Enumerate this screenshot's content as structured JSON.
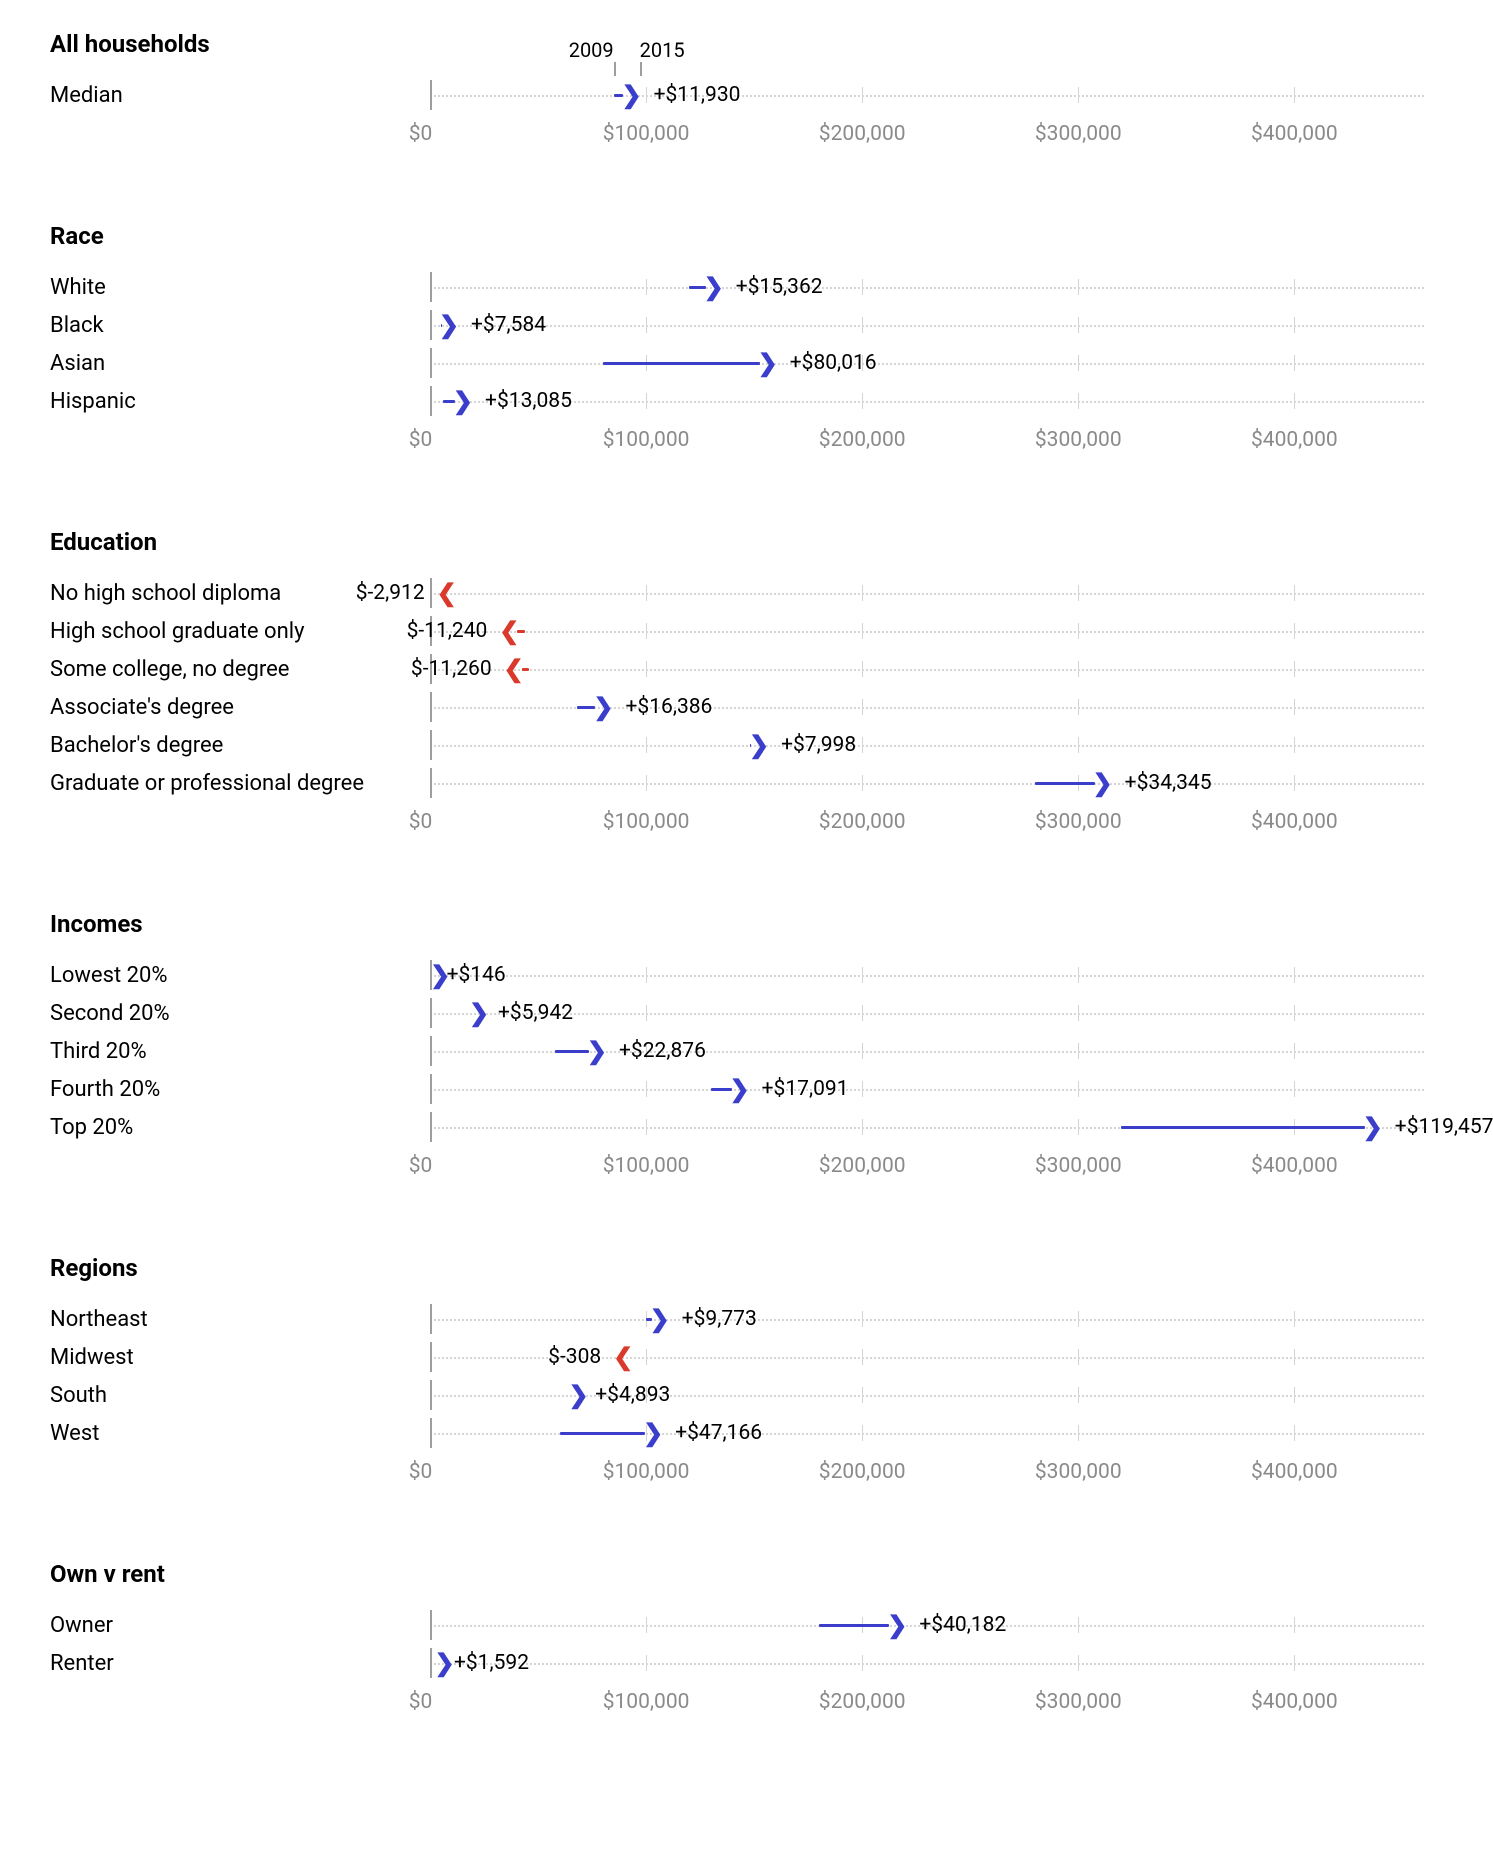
{
  "chart": {
    "type": "arrow-dot-plot",
    "background_color": "#ffffff",
    "line_color_dotted": "#d5d5d5",
    "zero_line_color": "#9e9e9e",
    "positive_color": "#3b3ecb",
    "negative_color": "#d93a2b",
    "text_color": "#000000",
    "axis_label_color": "#8a8a8a",
    "axis": {
      "min": 0,
      "max": 460000,
      "ticks": [
        0,
        100000,
        200000,
        300000,
        400000
      ],
      "tick_labels": [
        "$0",
        "$100,000",
        "$200,000",
        "$300,000",
        "$400,000"
      ],
      "fontsize": 21
    },
    "arrow_stroke_width": 3,
    "label_fontsize": 22,
    "header_fontsize": 24,
    "value_fontsize": 21,
    "year_labels": {
      "start": "2009",
      "end": "2015"
    }
  },
  "sections": [
    {
      "title": "All households",
      "show_year_marks": true,
      "rows": [
        {
          "label": "Median",
          "start": 85000,
          "end": 97000,
          "delta_label": "+$11,930",
          "positive": true
        }
      ]
    },
    {
      "title": "Race",
      "rows": [
        {
          "label": "White",
          "start": 120000,
          "end": 135000,
          "delta_label": "+$15,362",
          "positive": true
        },
        {
          "label": "Black",
          "start": 5000,
          "end": 12500,
          "delta_label": "+$7,584",
          "positive": true
        },
        {
          "label": "Asian",
          "start": 80000,
          "end": 160000,
          "delta_label": "+$80,016",
          "positive": true
        },
        {
          "label": "Hispanic",
          "start": 6000,
          "end": 19000,
          "delta_label": "+$13,085",
          "positive": true
        }
      ]
    },
    {
      "title": "Education",
      "rows": [
        {
          "label": "No high school diploma",
          "start": 7000,
          "end": 4000,
          "delta_label": "$-2,912",
          "positive": false
        },
        {
          "label": "High school graduate only",
          "start": 44000,
          "end": 33000,
          "delta_label": "$-11,240",
          "positive": false
        },
        {
          "label": "Some college, no degree",
          "start": 46000,
          "end": 35000,
          "delta_label": "$-11,260",
          "positive": false
        },
        {
          "label": "Associate's degree",
          "start": 68000,
          "end": 84000,
          "delta_label": "+$16,386",
          "positive": true
        },
        {
          "label": "Bachelor's degree",
          "start": 148000,
          "end": 156000,
          "delta_label": "+$7,998",
          "positive": true
        },
        {
          "label": "Graduate or professional degree",
          "start": 280000,
          "end": 315000,
          "delta_label": "+$34,345",
          "positive": true
        }
      ]
    },
    {
      "title": "Incomes",
      "rows": [
        {
          "label": "Lowest 20%",
          "start": 1000,
          "end": 1200,
          "delta_label": "+$146",
          "positive": true
        },
        {
          "label": "Second 20%",
          "start": 19000,
          "end": 25000,
          "delta_label": "+$5,942",
          "positive": true
        },
        {
          "label": "Third 20%",
          "start": 58000,
          "end": 81000,
          "delta_label": "+$22,876",
          "positive": true
        },
        {
          "label": "Fourth 20%",
          "start": 130000,
          "end": 147000,
          "delta_label": "+$17,091",
          "positive": true
        },
        {
          "label": "Top 20%",
          "start": 320000,
          "end": 440000,
          "delta_label": "+$119,457",
          "positive": true
        }
      ]
    },
    {
      "title": "Regions",
      "rows": [
        {
          "label": "Northeast",
          "start": 100000,
          "end": 110000,
          "delta_label": "+$9,773",
          "positive": true
        },
        {
          "label": "Midwest",
          "start": 86000,
          "end": 85700,
          "delta_label": "$-308",
          "positive": false
        },
        {
          "label": "South",
          "start": 65000,
          "end": 70000,
          "delta_label": "+$4,893",
          "positive": true
        },
        {
          "label": "West",
          "start": 60000,
          "end": 107000,
          "delta_label": "+$47,166",
          "positive": true
        }
      ]
    },
    {
      "title": "Own v rent",
      "rows": [
        {
          "label": "Owner",
          "start": 180000,
          "end": 220000,
          "delta_label": "+$40,182",
          "positive": true
        },
        {
          "label": "Renter",
          "start": 3000,
          "end": 4600,
          "delta_label": "+$1,592",
          "positive": true
        }
      ]
    }
  ]
}
